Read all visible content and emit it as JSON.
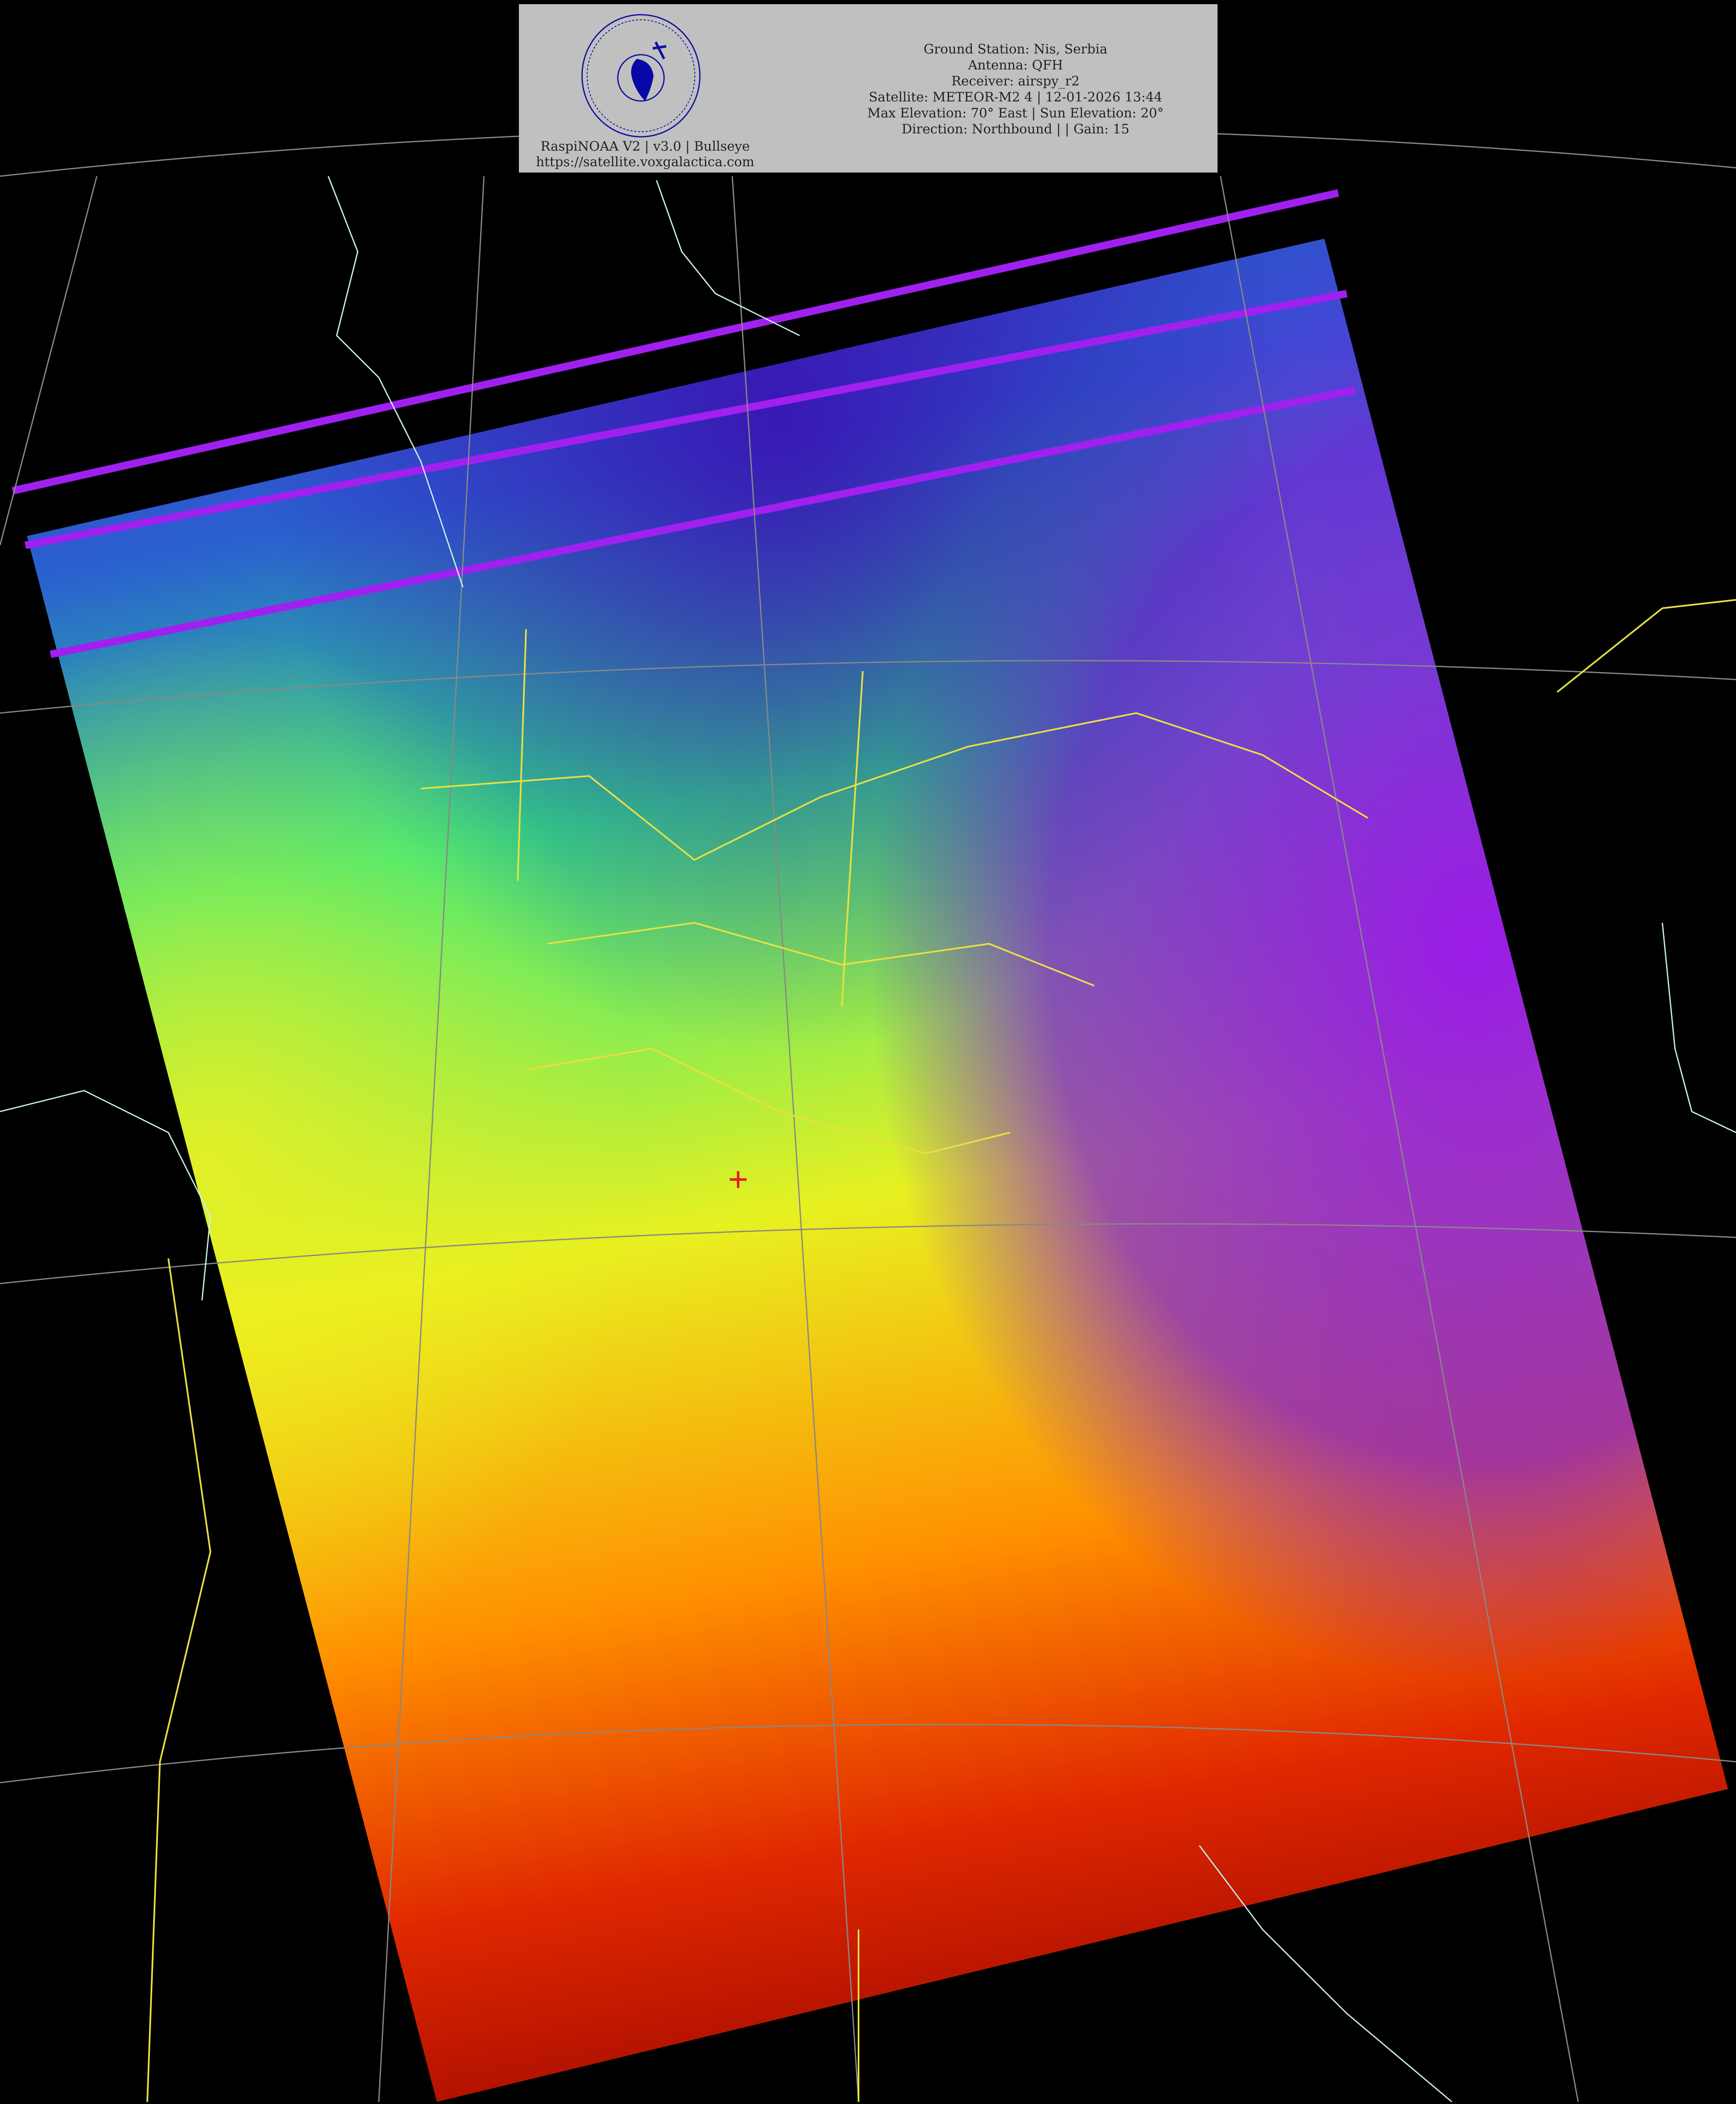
{
  "header": {
    "logo": {
      "top_text": "Mihajlo's Satellite Receiver",
      "bottom_text": "voxgalactica.com",
      "motto": "SAPERE AVDE"
    },
    "software": "RaspiNOAA V2 | v3.0 | Bullseye",
    "website": "https://satellite.voxgalactica.com",
    "lines": [
      "Ground Station: Nis, Serbia",
      "Antenna: QFH",
      "Receiver: airspy_r2",
      "Satellite: METEOR-M2 4 | 12-01-2026 13:44",
      "Max Elevation: 70° East | Sun Elevation: 20°",
      "Direction: Northbound | | Gain: 15"
    ]
  },
  "map": {
    "image_type": "false-color thermal IR satellite pass",
    "palette": [
      "#5a10e0",
      "#3020b0",
      "#20a0d0",
      "#30f060",
      "#f0f020",
      "#ff8000",
      "#c00c00"
    ],
    "border_colors": {
      "country": "#e8e040",
      "coastline": "#c8f0f0",
      "graticule": "#888888"
    },
    "ground_station_marker_color": "#e02020"
  }
}
